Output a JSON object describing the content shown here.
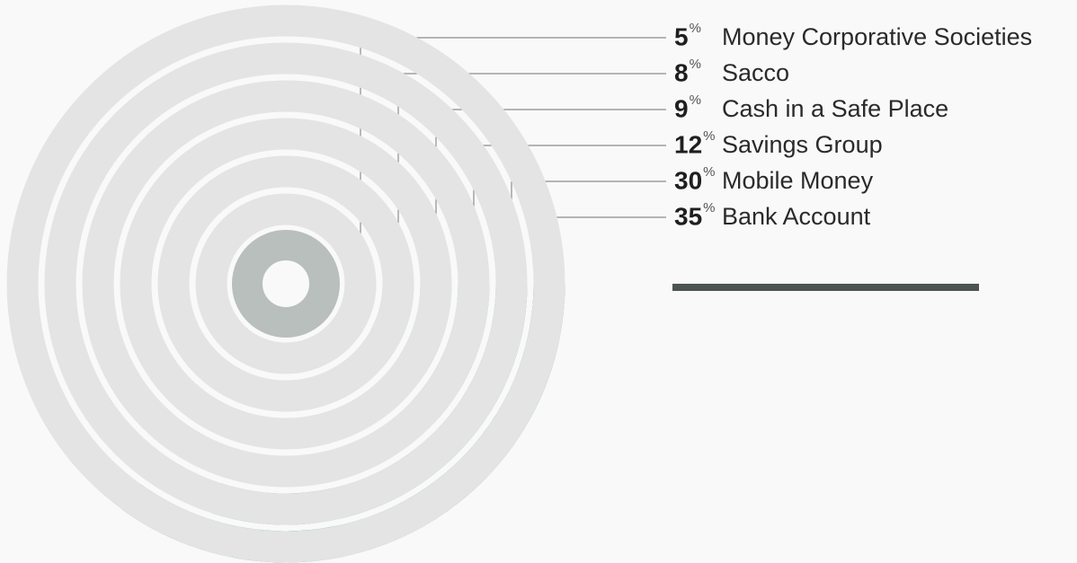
{
  "chart_data": {
    "type": "radial_bar",
    "categories": [
      "Money Corporative Societies",
      "Sacco",
      "Cash in a Safe Place",
      "Savings Group",
      "Mobile Money",
      "Bank Account"
    ],
    "values": [
      5,
      8,
      9,
      12,
      30,
      35
    ],
    "unit": "%",
    "colors": [
      "#c7e7ee",
      "#a6d9e6",
      "#a1d6e4",
      "#93c0d3",
      "#6aaac5",
      "#3f98b6"
    ],
    "track_color": "#e3e4e3",
    "ylim": [
      0,
      100
    ]
  }
}
